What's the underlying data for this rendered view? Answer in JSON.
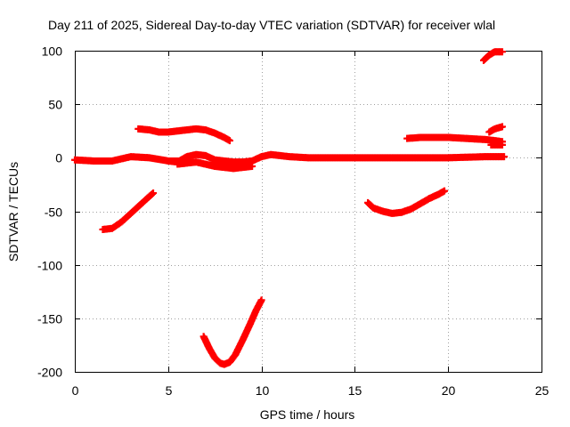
{
  "chart_data": {
    "type": "scatter",
    "title": "Day 211 of 2025, Sidereal Day-to-day VTEC variation (SDTVAR) for receiver wlal",
    "xlabel": "GPS time / hours",
    "ylabel": "SDTVAR / TECUs",
    "xlim": [
      0,
      25
    ],
    "ylim": [
      -200,
      100
    ],
    "xticks": [
      0,
      5,
      10,
      15,
      20,
      25
    ],
    "xtick_labels": [
      "0",
      "5",
      "10",
      "15",
      "20",
      "25"
    ],
    "yticks": [
      -200,
      -150,
      -100,
      -50,
      0,
      50,
      100
    ],
    "ytick_labels": [
      "-200",
      "-150",
      "-100",
      "-50",
      "0",
      "50",
      "100"
    ],
    "grid": true,
    "legend": "none",
    "marker": "plus",
    "color": "#ff0000",
    "series": [
      {
        "x": [
          0,
          1,
          2,
          3,
          4,
          5,
          5.5
        ],
        "y": [
          -2,
          -3,
          -3,
          1,
          0,
          -3,
          -3
        ]
      },
      {
        "x": [
          5.0,
          5.5,
          6.0,
          6.5,
          7.0,
          7.5,
          8.0,
          8.5,
          9.0,
          9.5,
          10.0
        ],
        "y": [
          -3,
          -4,
          1,
          3,
          2,
          -2,
          -3,
          -4,
          -4,
          -3,
          1
        ]
      },
      {
        "x": [
          5.5,
          6.5,
          7.5,
          8.5,
          9.5
        ],
        "y": [
          -6,
          -4,
          -8,
          -10,
          -8
        ]
      },
      {
        "x": [
          10.0,
          10.5,
          11.5,
          12.5,
          14.0,
          16.0,
          18.0,
          20.0,
          22.0,
          23.0
        ],
        "y": [
          1,
          3,
          1,
          0,
          0,
          0,
          0,
          0,
          1,
          1
        ]
      },
      {
        "x": [
          1.5,
          2.0,
          2.5,
          3.0,
          3.5,
          4.0,
          4.2
        ],
        "y": [
          -67,
          -66,
          -60,
          -52,
          -44,
          -36,
          -33
        ]
      },
      {
        "x": [
          3.4,
          4.0,
          4.5,
          5.0,
          5.5,
          6.0,
          6.5,
          7.0,
          7.5,
          8.0,
          8.3
        ],
        "y": [
          27,
          26,
          24,
          24,
          25,
          26,
          27,
          26,
          23,
          19,
          16
        ]
      },
      {
        "x": [
          6.9,
          7.2,
          7.5,
          7.8,
          8.0,
          8.3,
          8.6,
          9.0,
          9.4,
          9.7,
          10.0
        ],
        "y": [
          -167,
          -178,
          -187,
          -192,
          -193,
          -191,
          -184,
          -170,
          -155,
          -143,
          -133
        ]
      },
      {
        "x": [
          15.7,
          16.0,
          16.5,
          17.0,
          17.5,
          18.0,
          18.5,
          19.0,
          19.5,
          19.8
        ],
        "y": [
          -42,
          -47,
          -50,
          -52,
          -51,
          -48,
          -43,
          -38,
          -34,
          -31
        ]
      },
      {
        "x": [
          17.8,
          18.5,
          19.0,
          20.0,
          21.0,
          22.0,
          22.5,
          22.9
        ],
        "y": [
          18,
          19,
          19,
          19,
          18,
          17,
          16,
          15
        ]
      },
      {
        "x": [
          22.2,
          22.5,
          22.9
        ],
        "y": [
          24,
          27,
          29
        ]
      },
      {
        "x": [
          22.3,
          22.9
        ],
        "y": [
          12,
          12
        ]
      },
      {
        "x": [
          21.9,
          22.2,
          22.5,
          22.9
        ],
        "y": [
          91,
          96,
          99,
          99
        ]
      }
    ]
  }
}
